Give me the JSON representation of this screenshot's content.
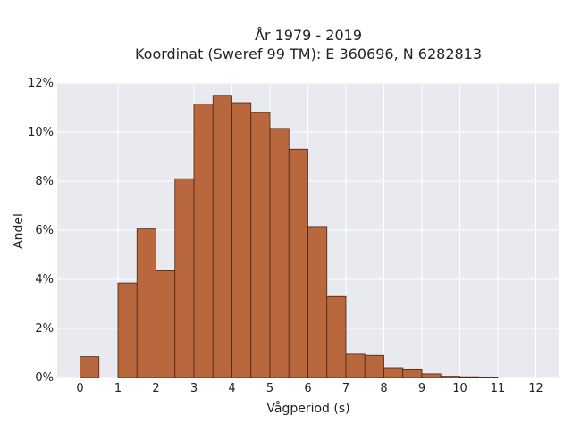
{
  "chart_data": {
    "type": "bar",
    "title_lines": [
      "År 1979 - 2019",
      "Koordinat (Sweref 99 TM): E 360696, N 6282813"
    ],
    "xlabel": "Vågperiod (s)",
    "ylabel": "Andel",
    "bin_width": 0.5,
    "bin_starts": [
      0,
      0.5,
      1,
      1.5,
      2,
      2.5,
      3,
      3.5,
      4,
      4.5,
      5,
      5.5,
      6,
      6.5,
      7,
      7.5,
      8,
      8.5,
      9,
      9.5,
      10,
      10.5,
      11,
      11.5
    ],
    "values": [
      0.85,
      0,
      3.85,
      6.05,
      4.35,
      8.1,
      11.15,
      11.5,
      11.2,
      10.8,
      10.15,
      9.3,
      6.15,
      3.3,
      0.95,
      0.9,
      0.4,
      0.35,
      0.15,
      0.05,
      0.03,
      0.02,
      0,
      0
    ],
    "xlim": [
      -0.6,
      12.6
    ],
    "ylim": [
      0,
      12
    ],
    "x_ticks": [
      0,
      1,
      2,
      3,
      4,
      5,
      6,
      7,
      8,
      9,
      10,
      11,
      12
    ],
    "x_tick_labels": [
      "0",
      "1",
      "2",
      "3",
      "4",
      "5",
      "6",
      "7",
      "8",
      "9",
      "10",
      "11",
      "12"
    ],
    "y_ticks": [
      0,
      2,
      4,
      6,
      8,
      10,
      12
    ],
    "y_tick_labels": [
      "0%",
      "2%",
      "4%",
      "6%",
      "8%",
      "10%",
      "12%"
    ],
    "grid": true,
    "colors": {
      "bar_fill": "#b9683e",
      "bar_stroke": "#4a2412",
      "plot_bg": "#e9e9f0",
      "grid": "#ffffff"
    }
  }
}
